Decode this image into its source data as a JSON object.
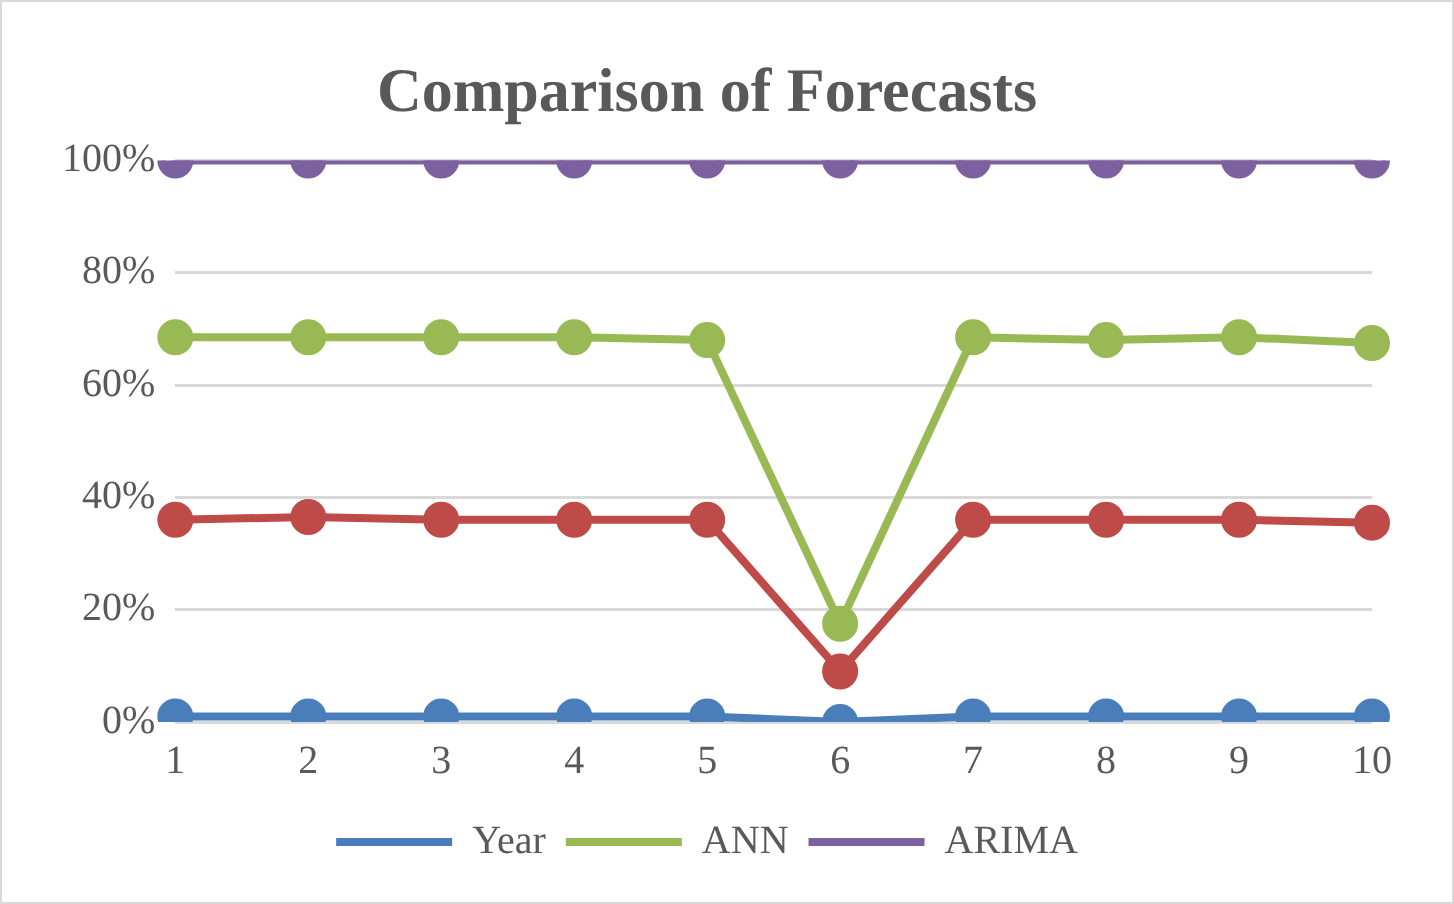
{
  "chart_data": {
    "type": "line",
    "title": "Comparison of Forecasts",
    "categories": [
      "1",
      "2",
      "3",
      "4",
      "5",
      "6",
      "7",
      "8",
      "9",
      "10"
    ],
    "series": [
      {
        "name": "Year",
        "color": "#4a7ebb",
        "values": [
          1,
          1,
          1,
          1,
          1,
          0,
          1,
          1,
          1,
          1
        ]
      },
      {
        "color": "#be4b48",
        "values": [
          36,
          36.5,
          36,
          36,
          36,
          9,
          36,
          36,
          36,
          35.5
        ]
      },
      {
        "name": "ANN",
        "color": "#98b954",
        "values": [
          68.5,
          68.5,
          68.5,
          68.5,
          68,
          17.5,
          68.5,
          68,
          68.5,
          67.5
        ]
      },
      {
        "name": "ARIMA",
        "color": "#7d60a0",
        "values": [
          100,
          100,
          100,
          100,
          100,
          100,
          100,
          100,
          100,
          100
        ]
      }
    ],
    "ylim": [
      0,
      100
    ],
    "yticks": [
      {
        "value": 0,
        "label": "0%"
      },
      {
        "value": 20,
        "label": "20%"
      },
      {
        "value": 40,
        "label": "40%"
      },
      {
        "value": 60,
        "label": "60%"
      },
      {
        "value": 80,
        "label": "80%"
      },
      {
        "value": 100,
        "label": "100%"
      }
    ],
    "grid": "y",
    "legend": "bottom",
    "marker": "circle",
    "line_style": "solid"
  }
}
